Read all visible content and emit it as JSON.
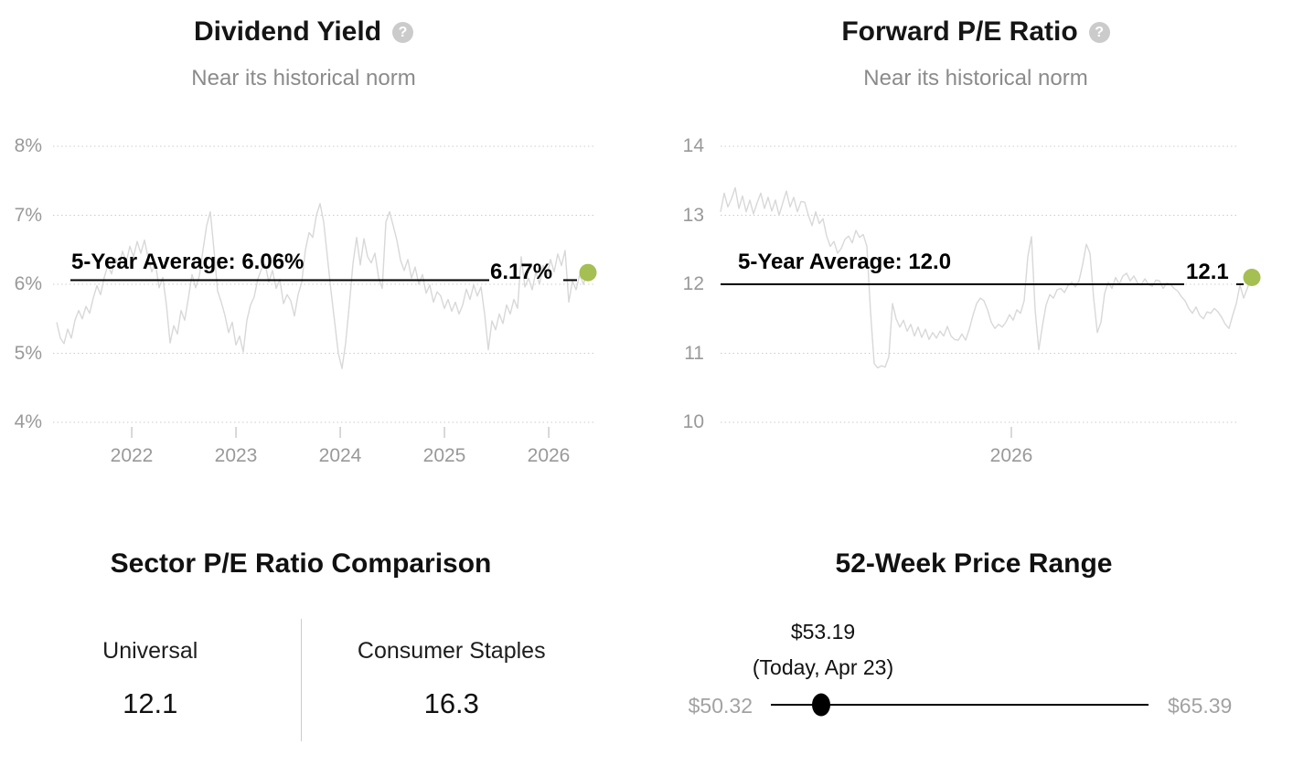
{
  "accent_color": "#a5bf52",
  "grid_color": "#cccccc",
  "series_color": "#d8d8d8",
  "chart_data": [
    {
      "type": "line",
      "id": "dividend-yield",
      "title": "Dividend Yield",
      "subtitle": "Near its historical norm",
      "help_icon": "question-mark-icon",
      "average": {
        "label": "5-Year Average: 6.06%",
        "value": 6.06
      },
      "current": {
        "label": "6.17%",
        "value": 6.17
      },
      "ylim": [
        4,
        8
      ],
      "grid": "dotted-horizontal",
      "y_ticks": [
        {
          "value": 8,
          "label": "8%"
        },
        {
          "value": 7,
          "label": "7%"
        },
        {
          "value": 6,
          "label": "6%"
        },
        {
          "value": 5,
          "label": "5%"
        },
        {
          "value": 4,
          "label": "4%"
        }
      ],
      "x_ticks": [
        {
          "year": 2022,
          "label": "2022"
        },
        {
          "year": 2023,
          "label": "2023"
        },
        {
          "year": 2024,
          "label": "2024"
        },
        {
          "year": 2025,
          "label": "2025"
        },
        {
          "year": 2026,
          "label": "2026"
        }
      ],
      "series": {
        "name": "Dividend yield (%)",
        "x_start_year": 2021.28,
        "x_step_years": 0.0351,
        "values": [
          5.45,
          5.22,
          5.14,
          5.35,
          5.22,
          5.48,
          5.62,
          5.5,
          5.68,
          5.58,
          5.8,
          5.98,
          5.85,
          6.1,
          6.28,
          6.15,
          6.38,
          6.25,
          6.48,
          6.32,
          6.55,
          6.4,
          6.62,
          6.45,
          6.64,
          6.38,
          6.18,
          6.3,
          5.95,
          6.1,
          5.7,
          5.15,
          5.4,
          5.28,
          5.62,
          5.48,
          5.8,
          6.14,
          5.95,
          6.12,
          6.5,
          6.85,
          7.05,
          6.5,
          5.9,
          5.74,
          5.55,
          5.3,
          5.45,
          5.12,
          5.25,
          5.02,
          5.48,
          5.7,
          5.82,
          6.08,
          6.22,
          6.29,
          6.03,
          6.2,
          5.94,
          6.07,
          5.72,
          5.85,
          5.76,
          5.54,
          5.85,
          6.03,
          6.5,
          6.75,
          6.68,
          7.0,
          7.17,
          6.9,
          6.4,
          5.9,
          5.45,
          5.0,
          4.78,
          5.15,
          5.7,
          6.3,
          6.68,
          6.28,
          6.66,
          6.4,
          6.31,
          6.45,
          6.1,
          5.94,
          6.9,
          7.05,
          6.85,
          6.64,
          6.35,
          6.2,
          6.36,
          6.09,
          6.25,
          6.0,
          6.14,
          5.87,
          5.99,
          5.74,
          5.89,
          5.83,
          5.65,
          5.78,
          5.61,
          5.74,
          5.57,
          5.7,
          5.93,
          5.78,
          5.99,
          5.83,
          5.96,
          5.57,
          5.05,
          5.47,
          5.34,
          5.57,
          5.43,
          5.7,
          5.57,
          5.78,
          5.65,
          6.4,
          5.96,
          6.09,
          5.92,
          6.18,
          6.0,
          6.27,
          6.09,
          6.36,
          6.18,
          6.44,
          6.27,
          6.49,
          5.74,
          6.05,
          5.92,
          6.14,
          6.0,
          6.17
        ]
      }
    },
    {
      "type": "line",
      "id": "forward-pe",
      "title": "Forward P/E Ratio",
      "subtitle": "Near its historical norm",
      "help_icon": "question-mark-icon",
      "average": {
        "label": "5-Year Average: 12.0",
        "value": 12.0
      },
      "current": {
        "label": "12.1",
        "value": 12.1
      },
      "ylim": [
        10,
        14
      ],
      "grid": "dotted-horizontal",
      "y_ticks": [
        {
          "value": 14,
          "label": "14"
        },
        {
          "value": 13,
          "label": "13"
        },
        {
          "value": 12,
          "label": "12"
        },
        {
          "value": 11,
          "label": "11"
        },
        {
          "value": 10,
          "label": "10"
        }
      ],
      "x_ticks": [
        {
          "year": 2026,
          "label": "2026"
        }
      ],
      "series": {
        "name": "Forward P/E",
        "x_start_year": 2025.552,
        "x_step_years": 0.005635,
        "values": [
          13.05,
          13.32,
          13.12,
          13.24,
          13.4,
          13.1,
          13.28,
          13.05,
          13.22,
          13.02,
          13.18,
          13.32,
          13.1,
          13.26,
          13.06,
          13.22,
          13.0,
          13.18,
          13.35,
          13.12,
          13.26,
          13.05,
          13.2,
          13.19,
          13.0,
          12.85,
          13.05,
          12.88,
          12.95,
          12.7,
          12.55,
          12.62,
          12.45,
          12.52,
          12.65,
          12.7,
          12.6,
          12.78,
          12.68,
          12.72,
          12.55,
          11.6,
          10.85,
          10.79,
          10.82,
          10.8,
          10.95,
          11.72,
          11.5,
          11.38,
          11.48,
          11.32,
          11.42,
          11.25,
          11.38,
          11.23,
          11.35,
          11.2,
          11.3,
          11.22,
          11.32,
          11.25,
          11.39,
          11.25,
          11.2,
          11.19,
          11.28,
          11.19,
          11.35,
          11.55,
          11.72,
          11.8,
          11.76,
          11.63,
          11.45,
          11.36,
          11.42,
          11.38,
          11.45,
          11.56,
          11.48,
          11.63,
          11.58,
          11.76,
          12.4,
          12.69,
          11.63,
          11.05,
          11.4,
          11.7,
          11.85,
          11.8,
          11.92,
          11.94,
          11.88,
          11.98,
          12.03,
          11.96,
          12.05,
          12.29,
          12.58,
          12.45,
          11.8,
          11.3,
          11.45,
          11.87,
          12.03,
          11.94,
          12.1,
          12.0,
          12.12,
          12.16,
          12.05,
          12.12,
          12.02,
          11.99,
          12.08,
          12.0,
          11.97,
          12.06,
          12.05,
          11.94,
          12.02,
          12.0,
          11.94,
          11.9,
          11.82,
          11.76,
          11.65,
          11.58,
          11.67,
          11.55,
          11.5,
          11.6,
          11.58,
          11.65,
          11.6,
          11.52,
          11.42,
          11.36,
          11.55,
          11.72,
          11.99,
          11.8,
          11.94,
          12.1
        ]
      }
    },
    {
      "type": "table",
      "id": "sector-pe-comparison",
      "title": "Sector P/E Ratio Comparison",
      "columns": [
        {
          "label": "Universal",
          "value": "12.1"
        },
        {
          "label": "Consumer Staples",
          "value": "16.3"
        }
      ]
    }
  ],
  "price_range": {
    "title": "52-Week Price Range",
    "current_price": "$53.19",
    "current_caption": "(Today, Apr 23)",
    "low": "$50.32",
    "high": "$65.39"
  }
}
